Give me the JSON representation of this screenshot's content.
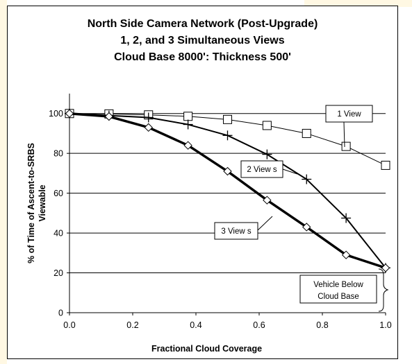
{
  "chart_data": {
    "type": "line",
    "title_lines": [
      "North Side Camera Network (Post-Upgrade)",
      "1, 2, and 3 Simultaneous Views",
      "Cloud Base 8000':  Thickness 500'"
    ],
    "xlabel": "Fractional Cloud Coverage",
    "ylabel_lines": [
      "% of Time of Ascent-to-SRBS",
      "Viewable"
    ],
    "xlim": [
      0,
      1
    ],
    "ylim": [
      0,
      110
    ],
    "x_ticks": [
      "0.0",
      "0.2",
      "0.4",
      "0.6",
      "0.8",
      "1.0"
    ],
    "y_ticks": [
      "0",
      "20",
      "40",
      "60",
      "80",
      "100"
    ],
    "grid": "horizontal",
    "series": [
      {
        "name": "1 View",
        "marker": "square",
        "x": [
          0,
          0.125,
          0.25,
          0.375,
          0.5,
          0.625,
          0.75,
          0.875,
          1.0
        ],
        "y": [
          100,
          99.8,
          99.3,
          98.6,
          97,
          94,
          90,
          83.5,
          74
        ]
      },
      {
        "name": "2 Views",
        "marker": "plus",
        "x": [
          0,
          0.125,
          0.25,
          0.375,
          0.5,
          0.625,
          0.75,
          0.875,
          1.0
        ],
        "y": [
          100,
          99,
          98,
          94.5,
          89,
          79.5,
          67,
          47.5,
          22.5
        ]
      },
      {
        "name": "3 Views",
        "marker": "diamond",
        "x": [
          0,
          0.125,
          0.25,
          0.375,
          0.5,
          0.625,
          0.75,
          0.875,
          1.0
        ],
        "y": [
          100,
          98.5,
          93,
          84,
          71,
          56.5,
          43,
          29,
          22.5
        ]
      }
    ],
    "callouts": {
      "one_view": "1 View",
      "two_views": "2 View s",
      "three_views": "3 View s",
      "vehicle_line1": "Vehicle Below",
      "vehicle_line2": "Cloud Base"
    }
  }
}
